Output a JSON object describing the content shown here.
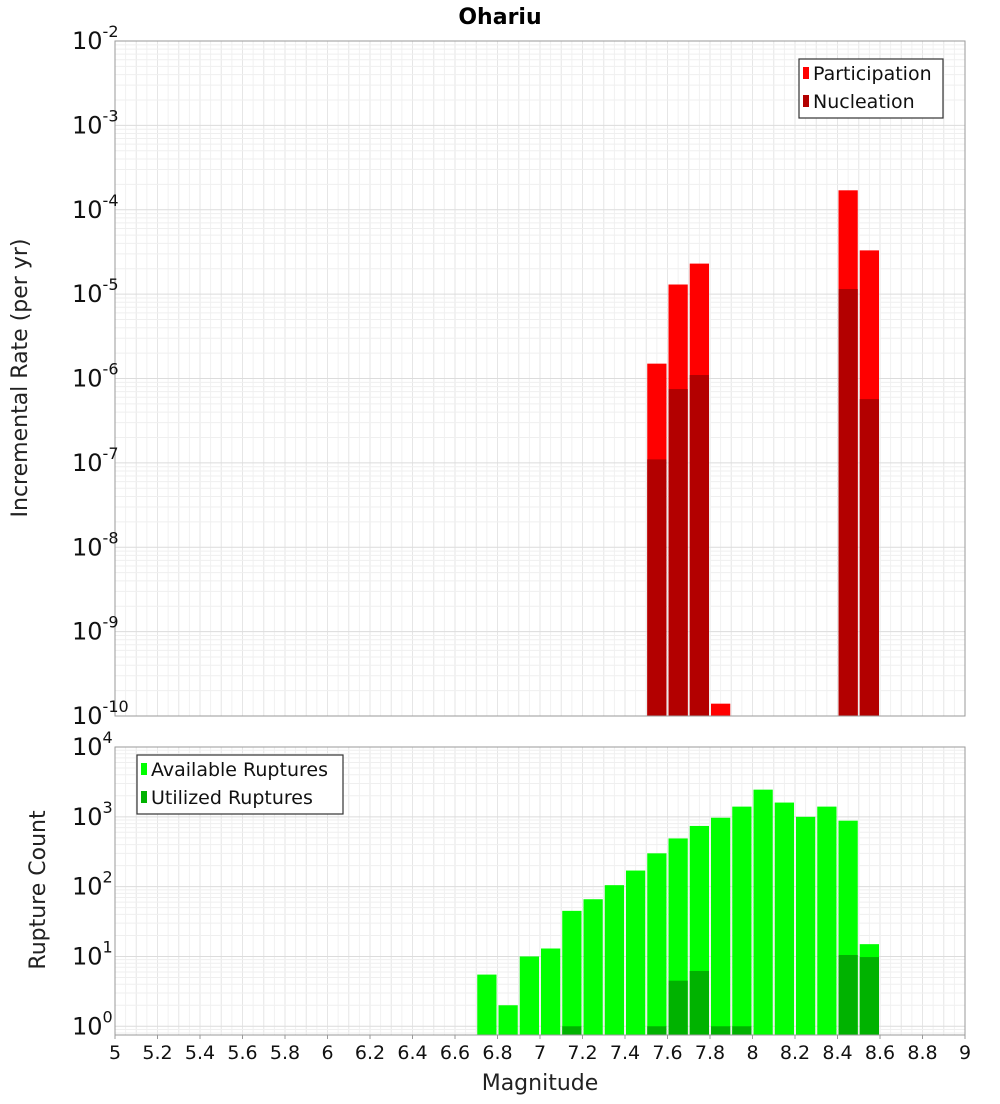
{
  "chart_data": [
    {
      "type": "bar",
      "title": "Ohariu",
      "xlabel": "",
      "ylabel": "Incremental Rate (per yr)",
      "yscale": "log",
      "ylim": [
        1e-10,
        0.01
      ],
      "xlim": [
        5,
        9
      ],
      "bin_width": 0.1,
      "grid": true,
      "legend_position": "top-right",
      "y_ticks": [
        {
          "base": "10",
          "exp": "-10"
        },
        {
          "base": "10",
          "exp": "-9"
        },
        {
          "base": "10",
          "exp": "-8"
        },
        {
          "base": "10",
          "exp": "-7"
        },
        {
          "base": "10",
          "exp": "-6"
        },
        {
          "base": "10",
          "exp": "-5"
        },
        {
          "base": "10",
          "exp": "-4"
        },
        {
          "base": "10",
          "exp": "-3"
        },
        {
          "base": "10",
          "exp": "-2"
        }
      ],
      "series": [
        {
          "name": "Participation",
          "color": "#ff0000",
          "x": [
            7.55,
            7.65,
            7.75,
            7.85,
            8.45,
            8.55
          ],
          "values": [
            1.5e-06,
            1.3e-05,
            2.3e-05,
            1.4e-10,
            0.00017,
            3.3e-05
          ]
        },
        {
          "name": "Nucleation",
          "color": "#b30000",
          "x": [
            7.55,
            7.65,
            7.75,
            8.45,
            8.55
          ],
          "values": [
            1.1e-07,
            7.5e-07,
            1.1e-06,
            1.15e-05,
            5.7e-07
          ]
        }
      ]
    },
    {
      "type": "bar",
      "title": "",
      "xlabel": "Magnitude",
      "ylabel": "Rupture Count",
      "yscale": "log",
      "ylim": [
        0.75,
        10000
      ],
      "xlim": [
        5,
        9
      ],
      "bin_width": 0.1,
      "grid": true,
      "legend_position": "top-left",
      "x_ticks": [
        "5",
        "5.2",
        "5.4",
        "5.6",
        "5.8",
        "6",
        "6.2",
        "6.4",
        "6.6",
        "6.8",
        "7",
        "7.2",
        "7.4",
        "7.6",
        "7.8",
        "8",
        "8.2",
        "8.4",
        "8.6",
        "8.8",
        "9"
      ],
      "y_ticks": [
        {
          "base": "10",
          "exp": "0"
        },
        {
          "base": "10",
          "exp": "1"
        },
        {
          "base": "10",
          "exp": "2"
        },
        {
          "base": "10",
          "exp": "3"
        },
        {
          "base": "10",
          "exp": "4"
        }
      ],
      "series": [
        {
          "name": "Available Ruptures",
          "color": "#00ff00",
          "x": [
            6.75,
            6.85,
            6.95,
            7.05,
            7.15,
            7.25,
            7.35,
            7.45,
            7.55,
            7.65,
            7.75,
            7.85,
            7.95,
            8.05,
            8.15,
            8.25,
            8.35,
            8.45,
            8.55
          ],
          "values": [
            5.5,
            2,
            10,
            13,
            45,
            66,
            105,
            170,
            300,
            490,
            740,
            970,
            1400,
            2450,
            1600,
            1000,
            1400,
            880,
            15
          ]
        },
        {
          "name": "Utilized Ruptures",
          "color": "#00b200",
          "x": [
            7.15,
            7.55,
            7.65,
            7.75,
            7.85,
            7.95,
            8.45,
            8.55
          ],
          "values": [
            1,
            1,
            4.5,
            6.2,
            1,
            1,
            10.5,
            9.8
          ]
        }
      ]
    }
  ]
}
